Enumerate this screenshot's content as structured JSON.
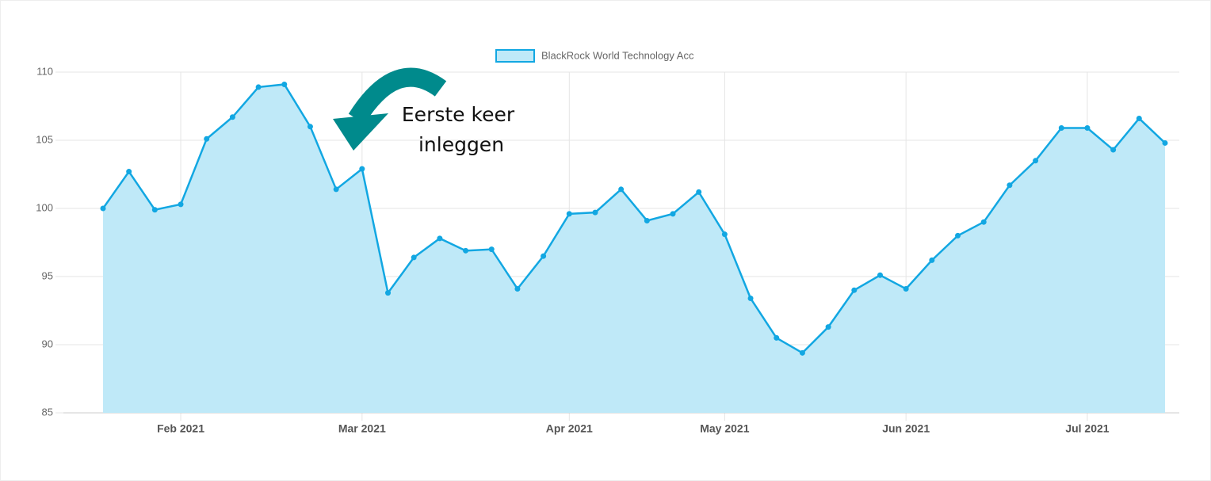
{
  "chart_data": {
    "type": "line",
    "legend": "BlackRock World Technology Acc",
    "annotation": [
      "Eerste keer",
      "inleggen"
    ],
    "categories": [
      null,
      null,
      null,
      "Feb 2021",
      null,
      null,
      null,
      null,
      null,
      null,
      "Mar 2021",
      null,
      null,
      null,
      null,
      null,
      null,
      null,
      "Apr 2021",
      null,
      null,
      null,
      null,
      null,
      "May 2021",
      null,
      null,
      null,
      null,
      null,
      null,
      "Jun 2021",
      null,
      null,
      null,
      null,
      null,
      null,
      "Jul 2021",
      null,
      null,
      null
    ],
    "series": [
      {
        "name": "BlackRock World Technology Acc",
        "color": "#12a7e2",
        "fill": "#bfe9f8",
        "values": [
          100.0,
          102.7,
          99.9,
          100.3,
          105.1,
          106.7,
          108.9,
          109.1,
          106.0,
          101.4,
          102.9,
          93.8,
          96.4,
          97.8,
          96.9,
          97.0,
          94.1,
          96.5,
          99.6,
          99.7,
          101.4,
          99.1,
          99.6,
          101.2,
          98.1,
          93.4,
          90.5,
          89.4,
          91.3,
          94.0,
          95.1,
          94.1,
          96.2,
          98.0,
          99.0,
          101.7,
          103.5,
          105.9,
          105.9,
          104.3,
          106.6,
          104.8
        ]
      }
    ],
    "ylim": [
      85,
      110
    ],
    "yticks": [
      85,
      90,
      95,
      100,
      105,
      110
    ],
    "grid": true
  }
}
